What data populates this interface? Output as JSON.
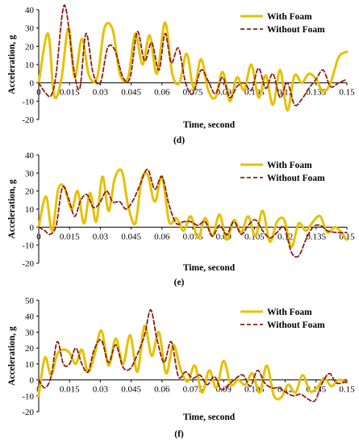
{
  "colors": {
    "with_foam": "#E5C100",
    "without_foam": "#8B1E10",
    "axis": "#000000"
  },
  "chart_data": [
    {
      "type": "line",
      "panel_label": "(d)",
      "xlabel": "Time, second",
      "ylabel": "Acceleration, g",
      "xlim": [
        0,
        0.15
      ],
      "ylim": [
        -20,
        40
      ],
      "yticks": [
        -20,
        -10,
        0,
        10,
        20,
        30,
        40
      ],
      "xticks": [
        "0",
        "0.015",
        "0.03",
        "0.045",
        "0.06",
        "0.075",
        "0.09",
        "0.105",
        "0.12",
        "0.135",
        "0.15"
      ],
      "legend_position": "top-right",
      "series": [
        {
          "name": "With Foam",
          "x": [
            0,
            0.0045,
            0.0075,
            0.011,
            0.0145,
            0.0175,
            0.021,
            0.0245,
            0.0285,
            0.032,
            0.036,
            0.0395,
            0.0435,
            0.047,
            0.0505,
            0.054,
            0.0575,
            0.0615,
            0.065,
            0.0685,
            0.072,
            0.0755,
            0.079,
            0.0825,
            0.086,
            0.0895,
            0.093,
            0.0965,
            0.1,
            0.1035,
            0.107,
            0.1105,
            0.114,
            0.1175,
            0.121,
            0.1245,
            0.128,
            0.1315,
            0.135,
            0.1385,
            0.142,
            0.146,
            0.15
          ],
          "values": [
            0,
            27,
            -7,
            2,
            30,
            3,
            24,
            4,
            3,
            30,
            29,
            5,
            3,
            27,
            10,
            26,
            5,
            33,
            5,
            0,
            16,
            -3,
            13,
            -4,
            -8,
            6,
            -10,
            3,
            -4,
            10,
            -8,
            4,
            -12,
            7,
            -15,
            4,
            0,
            5,
            2,
            -5,
            0,
            14,
            17
          ]
        },
        {
          "name": "Without Foam",
          "x": [
            0,
            0.003,
            0.006,
            0.0085,
            0.0115,
            0.0135,
            0.017,
            0.02,
            0.023,
            0.0265,
            0.03,
            0.0335,
            0.037,
            0.041,
            0.0445,
            0.048,
            0.0515,
            0.055,
            0.0585,
            0.0615,
            0.0645,
            0.068,
            0.0715,
            0.075,
            0.079,
            0.0825,
            0.086,
            0.0895,
            0.093,
            0.0965,
            0.1,
            0.1035,
            0.107,
            0.1105,
            0.114,
            0.1175,
            0.121,
            0.1245,
            0.128,
            0.1315,
            0.135,
            0.1385,
            0.142,
            0.146,
            0.15
          ],
          "values": [
            0,
            -5,
            -7,
            5,
            38,
            39,
            8,
            -3,
            27,
            5,
            0,
            19,
            18,
            3,
            3,
            28,
            12,
            22,
            7,
            27,
            11,
            19,
            0,
            -6,
            7,
            1,
            -6,
            3,
            -8,
            -2,
            0,
            -4,
            8,
            -3,
            5,
            -8,
            0,
            -12,
            -9,
            -3,
            2,
            7,
            -2,
            0,
            2
          ]
        }
      ]
    },
    {
      "type": "line",
      "panel_label": "(e)",
      "xlabel": "Time, second",
      "ylabel": "Acceleration, g",
      "xlim": [
        0,
        0.15
      ],
      "ylim": [
        -20,
        40
      ],
      "yticks": [
        -20,
        -10,
        0,
        10,
        20,
        30,
        40
      ],
      "xticks": [
        "0",
        "0.015",
        "0.03",
        "0.045",
        "0.06",
        "0.075",
        "0.09",
        "0.105",
        "0.12",
        "0.135",
        "0.15"
      ],
      "legend_position": "top-right",
      "series": [
        {
          "name": "With Foam",
          "x": [
            0,
            0.0035,
            0.0065,
            0.0095,
            0.0125,
            0.016,
            0.019,
            0.022,
            0.025,
            0.028,
            0.031,
            0.034,
            0.037,
            0.0405,
            0.0435,
            0.047,
            0.05,
            0.053,
            0.0565,
            0.06,
            0.0635,
            0.067,
            0.0705,
            0.074,
            0.0775,
            0.081,
            0.0845,
            0.088,
            0.0915,
            0.095,
            0.0985,
            0.102,
            0.1055,
            0.109,
            0.1125,
            0.116,
            0.1195,
            0.123,
            0.1265,
            0.13,
            0.1335,
            0.137,
            0.1405,
            0.1445,
            0.15
          ],
          "values": [
            0,
            17,
            -2,
            21,
            22,
            10,
            20,
            2,
            19,
            3,
            28,
            9,
            27,
            31,
            12,
            2,
            26,
            29,
            14,
            28,
            3,
            5,
            -2,
            6,
            -6,
            5,
            -5,
            7,
            -7,
            4,
            -3,
            6,
            -5,
            9,
            -8,
            3,
            4,
            -11,
            2,
            -2,
            3,
            6,
            -3,
            0,
            -7
          ]
        },
        {
          "name": "Without Foam",
          "x": [
            0,
            0.003,
            0.0055,
            0.0085,
            0.0115,
            0.0145,
            0.0175,
            0.0205,
            0.0235,
            0.0265,
            0.0295,
            0.033,
            0.036,
            0.0395,
            0.0425,
            0.046,
            0.0495,
            0.053,
            0.0565,
            0.06,
            0.0635,
            0.067,
            0.0705,
            0.074,
            0.0775,
            0.081,
            0.0845,
            0.088,
            0.0915,
            0.095,
            0.0985,
            0.102,
            0.1055,
            0.109,
            0.1125,
            0.116,
            0.1195,
            0.123,
            0.1265,
            0.13,
            0.1335,
            0.137,
            0.1405,
            0.145,
            0.15
          ],
          "values": [
            0,
            -2,
            -4,
            1,
            22,
            16,
            6,
            15,
            18,
            11,
            13,
            20,
            14,
            14,
            10,
            15,
            24,
            32,
            21,
            28,
            12,
            2,
            3,
            3,
            1,
            3,
            -5,
            1,
            -4,
            3,
            -4,
            1,
            4,
            -2,
            -6,
            -3,
            0,
            -14,
            -16,
            -7,
            0,
            1,
            -2,
            -3,
            -3
          ]
        }
      ]
    },
    {
      "type": "line",
      "panel_label": "(f)",
      "xlabel": "Time, second",
      "ylabel": "Acceleration, g",
      "xlim": [
        0,
        0.15
      ],
      "ylim": [
        -20,
        50
      ],
      "yticks": [
        -20,
        -10,
        0,
        10,
        20,
        30,
        40,
        50
      ],
      "xticks": [
        "0",
        "0.015",
        "0.03",
        "0.045",
        "0.06",
        "0.075",
        "0.09",
        "0.105",
        "0.12",
        "0.135",
        "0.15"
      ],
      "legend_position": "top-right",
      "series": [
        {
          "name": "With Foam",
          "x": [
            0,
            0.003,
            0.006,
            0.009,
            0.012,
            0.015,
            0.018,
            0.021,
            0.024,
            0.027,
            0.0305,
            0.034,
            0.0375,
            0.041,
            0.0445,
            0.048,
            0.0515,
            0.055,
            0.0585,
            0.062,
            0.0655,
            0.069,
            0.0725,
            0.076,
            0.0795,
            0.083,
            0.0865,
            0.09,
            0.0935,
            0.097,
            0.1005,
            0.104,
            0.1075,
            0.111,
            0.1145,
            0.118,
            0.1215,
            0.125,
            0.1285,
            0.132,
            0.1355,
            0.139,
            0.1425,
            0.146,
            0.15
          ],
          "values": [
            -10,
            14,
            3,
            16,
            19,
            17,
            10,
            19,
            5,
            15,
            31,
            9,
            26,
            10,
            28,
            5,
            34,
            15,
            30,
            4,
            22,
            7,
            -1,
            9,
            -8,
            6,
            -5,
            12,
            -3,
            0,
            -3,
            4,
            -8,
            9,
            -10,
            -11,
            -3,
            -8,
            3,
            -7,
            -5,
            1,
            -4,
            0,
            -2
          ]
        },
        {
          "name": "Without Foam",
          "x": [
            0,
            0.003,
            0.006,
            0.009,
            0.012,
            0.015,
            0.018,
            0.021,
            0.024,
            0.027,
            0.0305,
            0.034,
            0.0375,
            0.041,
            0.0445,
            0.048,
            0.0515,
            0.0545,
            0.0575,
            0.061,
            0.0645,
            0.068,
            0.0715,
            0.075,
            0.0785,
            0.082,
            0.0855,
            0.089,
            0.0925,
            0.096,
            0.0995,
            0.103,
            0.1065,
            0.11,
            0.1135,
            0.117,
            0.1205,
            0.124,
            0.1275,
            0.131,
            0.1345,
            0.138,
            0.1415,
            0.145,
            0.15
          ],
          "values": [
            0,
            -5,
            2,
            24,
            10,
            10,
            20,
            10,
            5,
            19,
            25,
            11,
            22,
            8,
            7,
            16,
            28,
            44,
            26,
            11,
            24,
            2,
            5,
            1,
            3,
            -3,
            2,
            -6,
            -3,
            1,
            3,
            -4,
            6,
            -2,
            -5,
            -5,
            -8,
            -10,
            -9,
            -12,
            -13,
            -2,
            4,
            -2,
            -1
          ]
        }
      ]
    }
  ]
}
